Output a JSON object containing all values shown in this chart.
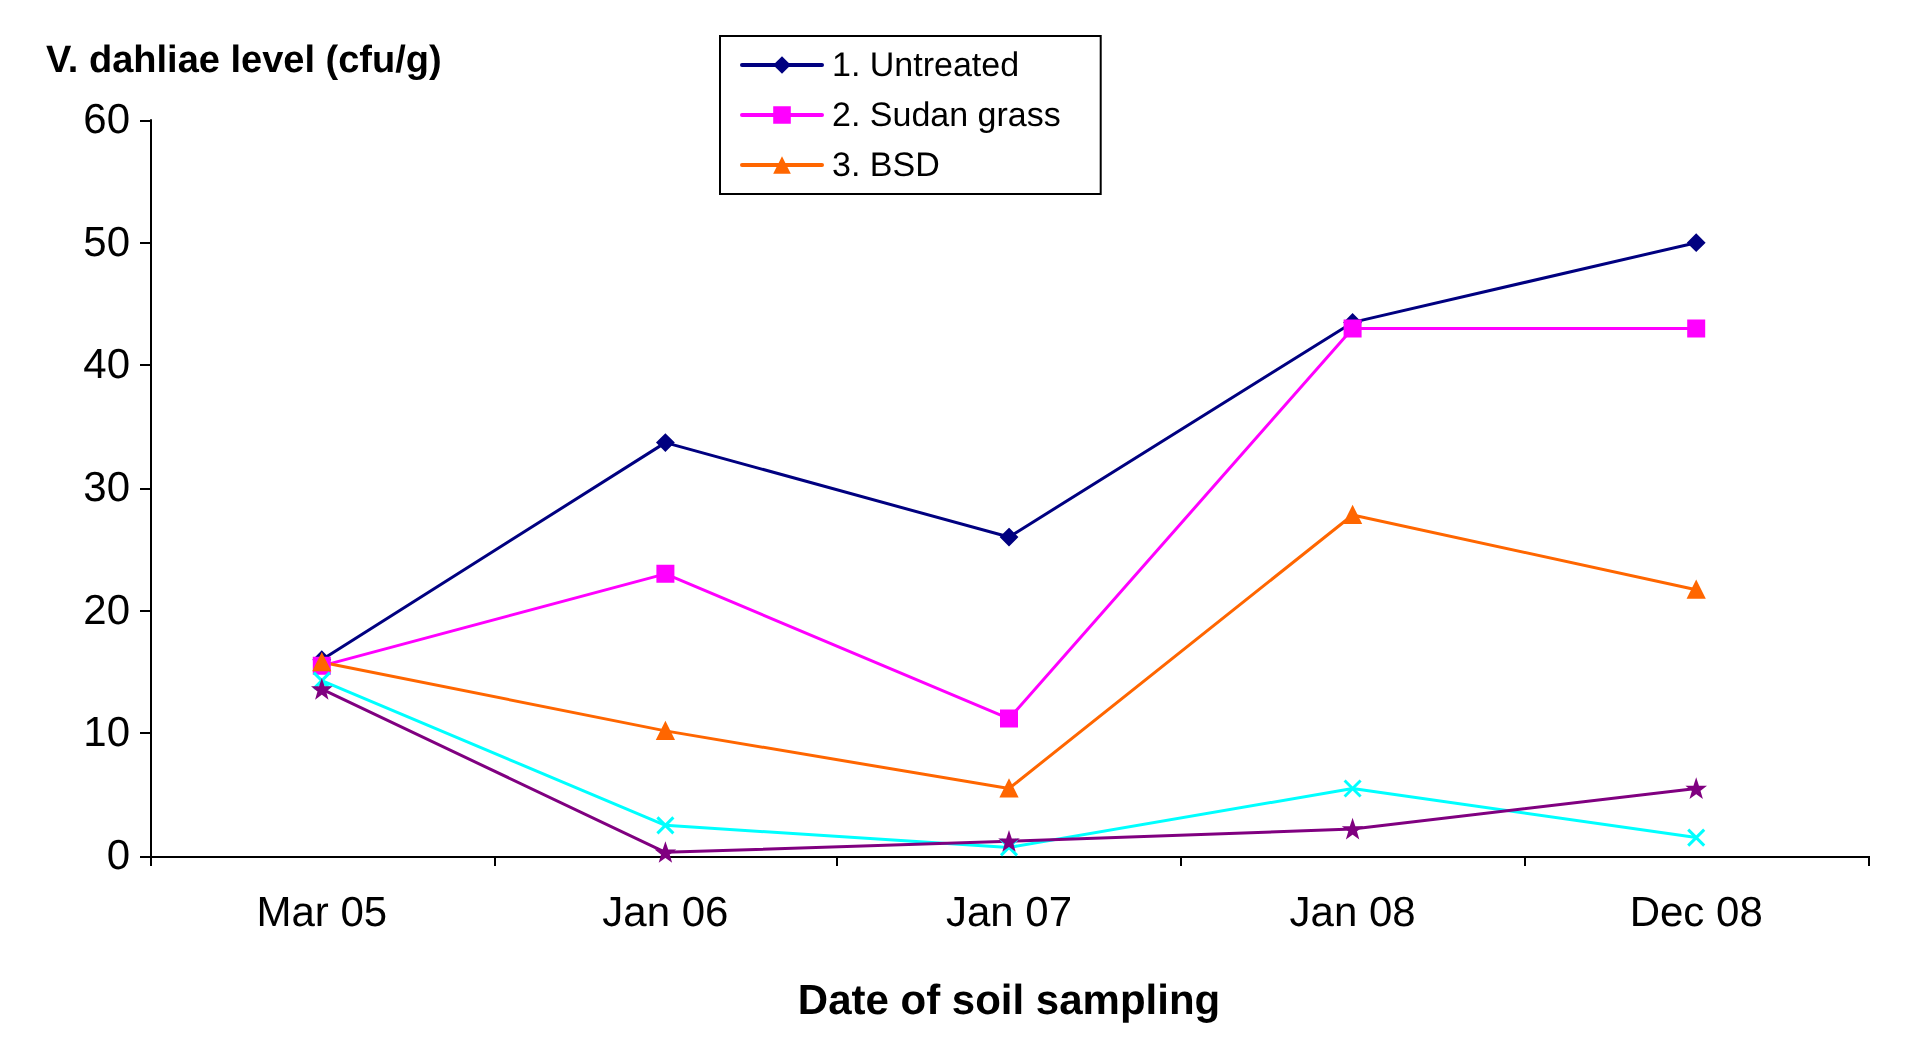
{
  "chart_data": {
    "type": "line",
    "xlabel": "Date of soil sampling",
    "ylabel": "V. dahliae level (cfu/g)",
    "categories": [
      "Mar 05",
      "Jan 06",
      "Jan 07",
      "Jan 08",
      "Dec 08"
    ],
    "ylim": [
      0,
      60
    ],
    "yticks": [
      0,
      10,
      20,
      30,
      40,
      50,
      60
    ],
    "grid": false,
    "legend": "top",
    "line_style": "solid",
    "series": [
      {
        "name": "1. Untreated",
        "color": "#000080",
        "marker": "diamond",
        "values": [
          16,
          33.7,
          26,
          43.5,
          50
        ]
      },
      {
        "name": "2. Sudan grass",
        "color": "#ff00ff",
        "marker": "square",
        "values": [
          15.5,
          23,
          11.2,
          43,
          43
        ]
      },
      {
        "name": "3. BSD",
        "color": "#ff6600",
        "marker": "triangle",
        "values": [
          15.8,
          10.2,
          5.5,
          27.8,
          21.7
        ]
      },
      {
        "color": "#00ffff",
        "marker": "cross",
        "values": [
          14.3,
          2.5,
          0.7,
          5.5,
          1.5
        ]
      },
      {
        "color": "#800080",
        "marker": "star",
        "values": [
          13.6,
          0.3,
          1.2,
          2.2,
          5.5
        ]
      }
    ]
  }
}
